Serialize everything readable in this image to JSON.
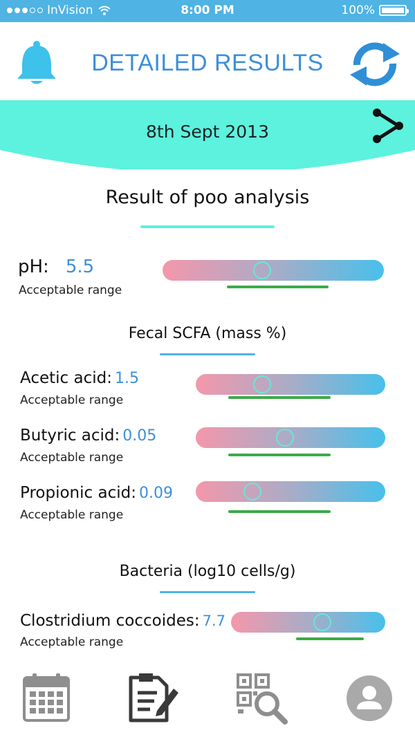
{
  "status_bar": {
    "carrier": "InVision",
    "time": "8:00 PM",
    "battery": "100%"
  },
  "header": {
    "title": "DETAILED RESULTS",
    "bell_icon": "bell-icon",
    "refresh_icon": "refresh-icon"
  },
  "date_band": {
    "date": "8th Sept 2013",
    "share_icon": "share-icon",
    "color": "#5cf2de"
  },
  "analysis": {
    "heading": "Result of poo analysis",
    "ph": {
      "label": "pH:",
      "value": "5.5",
      "sub": "Acceptable range",
      "marker": 0.45,
      "range_from": 0.29,
      "range_to": 0.75
    }
  },
  "scfa": {
    "heading": "Fecal SCFA (mass %)",
    "items": [
      {
        "label": "Acetic acid:",
        "value": "1.5",
        "sub": "Acceptable range",
        "marker": 0.35,
        "range_from": 0.17,
        "range_to": 0.71
      },
      {
        "label": "Butyric acid:",
        "value": "0.05",
        "sub": "Acceptable range",
        "marker": 0.47,
        "range_from": 0.17,
        "range_to": 0.71
      },
      {
        "label": "Propionic acid:",
        "value": "0.09",
        "sub": "Acceptable range",
        "marker": 0.3,
        "range_from": 0.17,
        "range_to": 0.71
      }
    ]
  },
  "bacteria": {
    "heading": "Bacteria (log10 cells/g)",
    "items": [
      {
        "label": "Clostridium coccoides:",
        "value": "7.7",
        "sub": "Acceptable range",
        "marker": 0.59,
        "range_from": 0.42,
        "range_to": 0.86
      }
    ]
  },
  "tabbar": {
    "items": [
      "calendar-icon",
      "report-edit-icon",
      "qr-search-icon",
      "profile-icon"
    ]
  },
  "colors": {
    "accent": "#3d8fdb",
    "status": "#4fb3e3",
    "teal": "#5cf2de",
    "green": "#3caa49"
  }
}
